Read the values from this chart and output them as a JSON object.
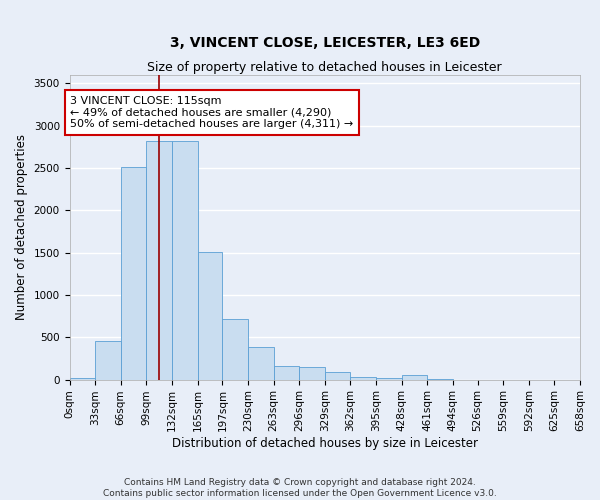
{
  "title": "3, VINCENT CLOSE, LEICESTER, LE3 6ED",
  "subtitle": "Size of property relative to detached houses in Leicester",
  "xlabel": "Distribution of detached houses by size in Leicester",
  "ylabel": "Number of detached properties",
  "bar_color": "#c9ddf0",
  "bar_edge_color": "#5a9fd4",
  "bar_heights": [
    15,
    460,
    2510,
    2820,
    2820,
    1510,
    720,
    390,
    155,
    150,
    85,
    35,
    20,
    50,
    12,
    0,
    0,
    0,
    0,
    0
  ],
  "bin_edges": [
    0,
    33,
    66,
    99,
    132,
    165,
    197,
    230,
    263,
    296,
    329,
    362,
    395,
    428,
    461,
    494,
    526,
    559,
    592,
    625,
    658
  ],
  "tick_labels": [
    "0sqm",
    "33sqm",
    "66sqm",
    "99sqm",
    "132sqm",
    "165sqm",
    "197sqm",
    "230sqm",
    "263sqm",
    "296sqm",
    "329sqm",
    "362sqm",
    "395sqm",
    "428sqm",
    "461sqm",
    "494sqm",
    "526sqm",
    "559sqm",
    "592sqm",
    "625sqm",
    "658sqm"
  ],
  "ylim": [
    0,
    3600
  ],
  "yticks": [
    0,
    500,
    1000,
    1500,
    2000,
    2500,
    3000,
    3500
  ],
  "vline_x": 115,
  "vline_color": "#990000",
  "annotation_text": "3 VINCENT CLOSE: 115sqm\n← 49% of detached houses are smaller (4,290)\n50% of semi-detached houses are larger (4,311) →",
  "annotation_box_color": "#ffffff",
  "annotation_box_edge": "#cc0000",
  "footer_line1": "Contains HM Land Registry data © Crown copyright and database right 2024.",
  "footer_line2": "Contains public sector information licensed under the Open Government Licence v3.0.",
  "background_color": "#e8eef8",
  "grid_color": "#ffffff",
  "title_fontsize": 10,
  "subtitle_fontsize": 9,
  "axis_label_fontsize": 8.5,
  "tick_fontsize": 7.5,
  "annotation_fontsize": 8,
  "footer_fontsize": 6.5
}
